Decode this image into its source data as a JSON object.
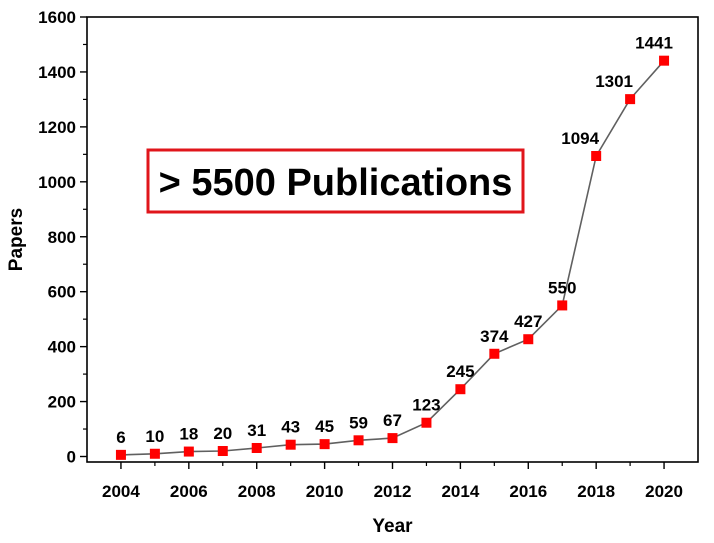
{
  "chart_data": {
    "type": "line",
    "xlabel": "Year",
    "ylabel": "Papers",
    "xlim": [
      2003,
      2021
    ],
    "ylim": [
      -20,
      1600
    ],
    "x_ticks": [
      2004,
      2006,
      2008,
      2010,
      2012,
      2014,
      2016,
      2018,
      2020
    ],
    "y_ticks": [
      0,
      200,
      400,
      600,
      800,
      1000,
      1200,
      1400,
      1600
    ],
    "grid": false,
    "series": [
      {
        "x": [
          2004,
          2005,
          2006,
          2007,
          2008,
          2009,
          2010,
          2011,
          2012,
          2013,
          2014,
          2015,
          2016,
          2017,
          2018,
          2019,
          2020
        ],
        "y": [
          6,
          10,
          18,
          20,
          31,
          43,
          45,
          59,
          67,
          123,
          245,
          374,
          427,
          550,
          1094,
          1301,
          1441
        ],
        "labels": [
          "6",
          "10",
          "18",
          "20",
          "31",
          "43",
          "45",
          "59",
          "67",
          "123",
          "245",
          "374",
          "427",
          "550",
          "1094",
          "1301",
          "1441"
        ],
        "line_color": "#606060",
        "marker_color": "#ff0000"
      }
    ],
    "annotation": {
      "text": "> 5500 Publications",
      "border_color": "#e0151b"
    }
  }
}
